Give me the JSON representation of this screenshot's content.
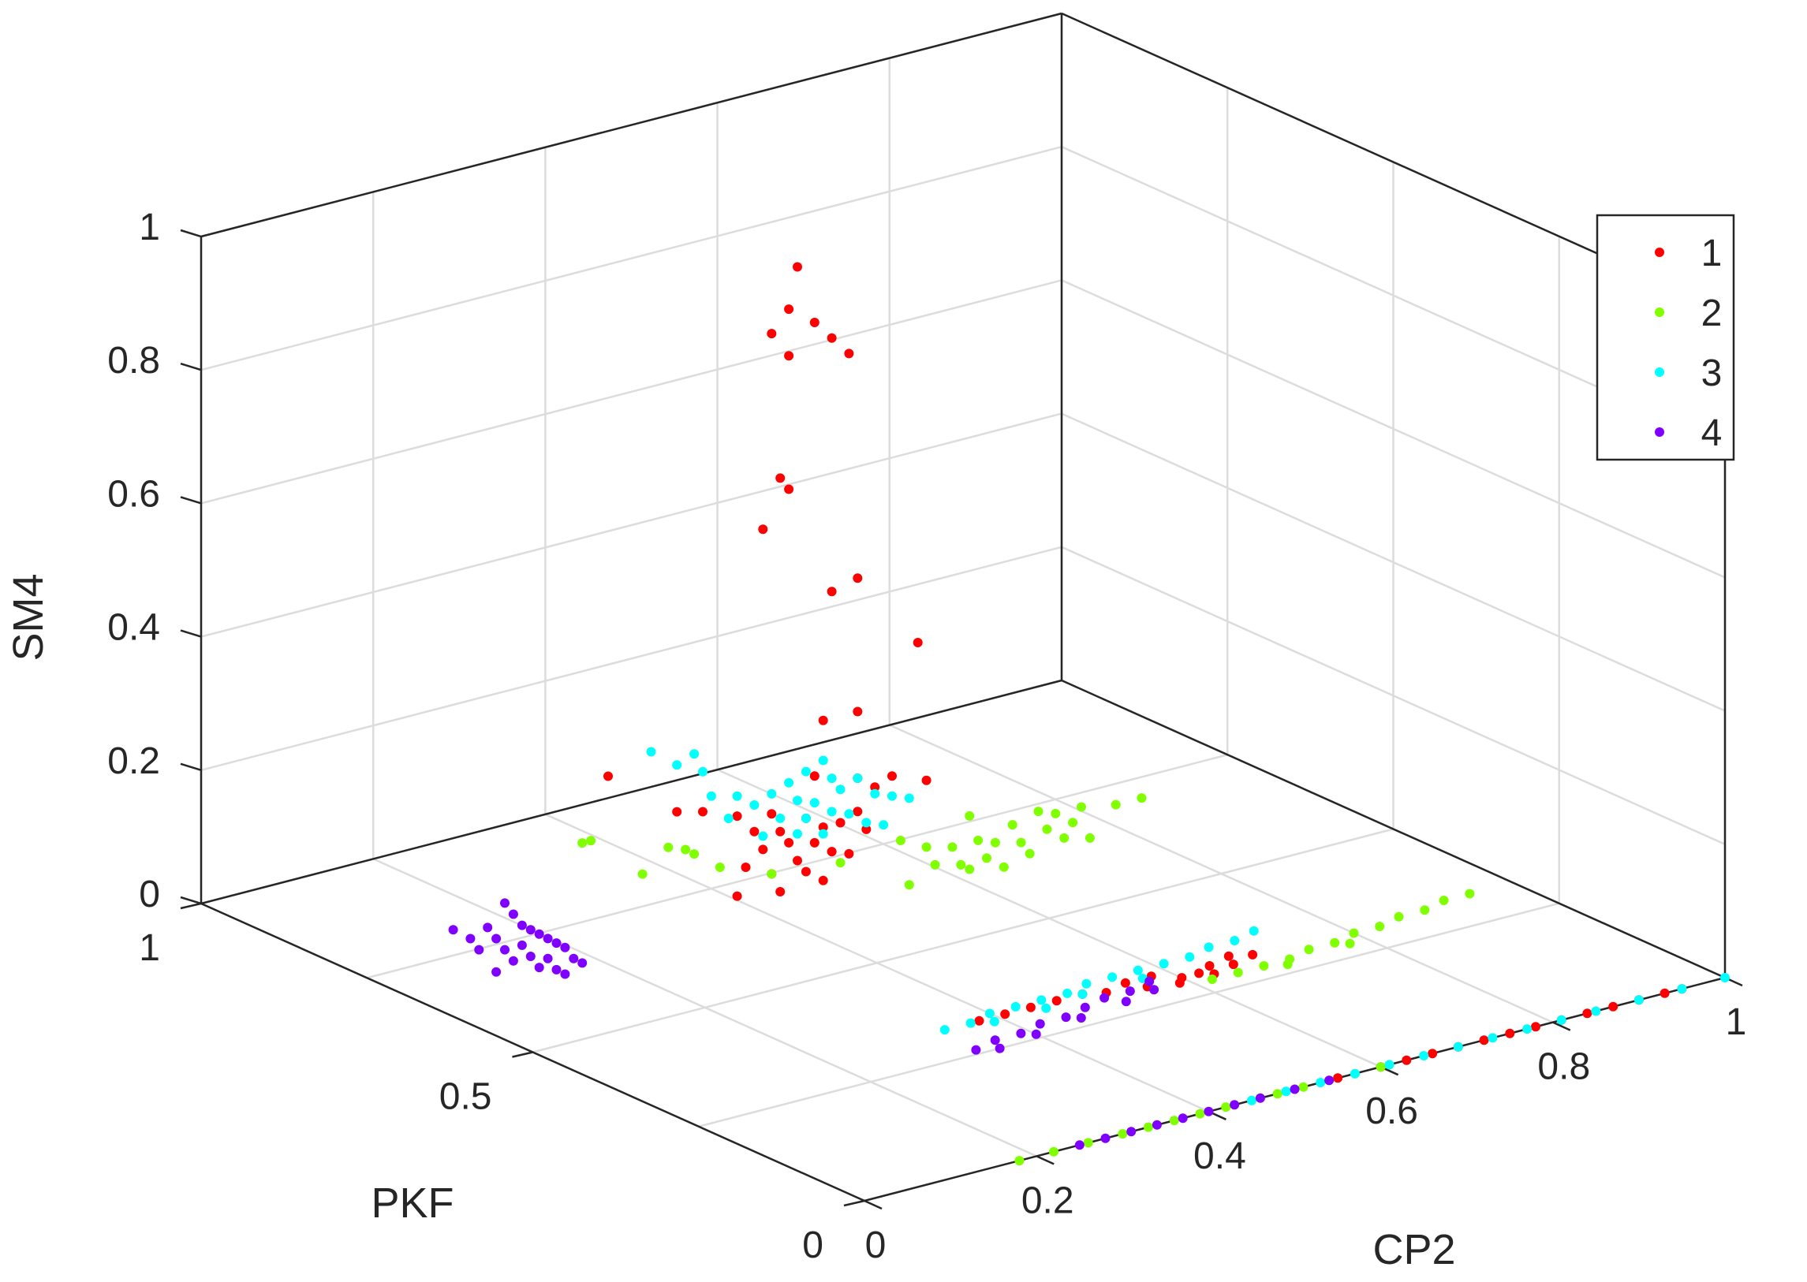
{
  "chart_data": {
    "type": "scatter",
    "projection": "3d",
    "title": "",
    "xlabel": "CP2",
    "ylabel": "PKF",
    "zlabel": "SM4",
    "xlim": [
      0,
      1
    ],
    "ylim": [
      0,
      1
    ],
    "zlim": [
      0,
      1
    ],
    "grid": true,
    "x_ticks": [
      0,
      0.2,
      0.4,
      0.6,
      0.8,
      1
    ],
    "y_ticks": [
      0,
      0.5,
      1
    ],
    "z_ticks": [
      0,
      0.2,
      0.4,
      0.6,
      0.8,
      1
    ],
    "x_tick_labels": [
      "0",
      "0.2",
      "0.4",
      "0.6",
      "0.8",
      "1"
    ],
    "y_tick_labels": [
      "0",
      "0.5",
      "1"
    ],
    "z_tick_labels": [
      "0",
      "0.2",
      "0.4",
      "0.6",
      "0.8",
      "1"
    ],
    "legend_position": "top-right",
    "colors": {
      "1": "#ff0000",
      "2": "#80ff00",
      "3": "#00ffff",
      "4": "#8000ff",
      "box": "#262626",
      "grid": "#dcdcdc"
    },
    "series": [
      {
        "name": "1",
        "color": "#ff0000",
        "points": [
          [
            0.4,
            0.62,
            0.99
          ],
          [
            0.39,
            0.62,
            0.93
          ],
          [
            0.37,
            0.62,
            0.9
          ],
          [
            0.42,
            0.62,
            0.9
          ],
          [
            0.44,
            0.62,
            0.87
          ],
          [
            0.39,
            0.62,
            0.86
          ],
          [
            0.46,
            0.62,
            0.84
          ],
          [
            0.38,
            0.62,
            0.68
          ],
          [
            0.39,
            0.62,
            0.66
          ],
          [
            0.36,
            0.62,
            0.61
          ],
          [
            0.47,
            0.62,
            0.5
          ],
          [
            0.44,
            0.62,
            0.49
          ],
          [
            0.54,
            0.62,
            0.38
          ],
          [
            0.43,
            0.62,
            0.3
          ],
          [
            0.47,
            0.62,
            0.3
          ],
          [
            0.18,
            0.62,
            0.3
          ],
          [
            0.26,
            0.62,
            0.22
          ],
          [
            0.29,
            0.62,
            0.21
          ],
          [
            0.33,
            0.62,
            0.19
          ],
          [
            0.37,
            0.62,
            0.18
          ],
          [
            0.35,
            0.62,
            0.16
          ],
          [
            0.38,
            0.62,
            0.15
          ],
          [
            0.41,
            0.62,
            0.16
          ],
          [
            0.43,
            0.62,
            0.14
          ],
          [
            0.36,
            0.62,
            0.13
          ],
          [
            0.39,
            0.62,
            0.13
          ],
          [
            0.42,
            0.62,
            0.12
          ],
          [
            0.45,
            0.62,
            0.14
          ],
          [
            0.47,
            0.62,
            0.15
          ],
          [
            0.34,
            0.62,
            0.11
          ],
          [
            0.4,
            0.62,
            0.1
          ],
          [
            0.44,
            0.62,
            0.1
          ],
          [
            0.48,
            0.62,
            0.12
          ],
          [
            0.37,
            0.62,
            0.09
          ],
          [
            0.41,
            0.62,
            0.08
          ],
          [
            0.46,
            0.62,
            0.09
          ],
          [
            0.49,
            0.62,
            0.18
          ],
          [
            0.51,
            0.62,
            0.19
          ],
          [
            0.55,
            0.62,
            0.17
          ],
          [
            0.38,
            0.62,
            0.06
          ],
          [
            0.43,
            0.62,
            0.06
          ],
          [
            0.33,
            0.62,
            0.07
          ],
          [
            0.42,
            0.62,
            0.22
          ],
          [
            0.47,
            0.62,
            0.2
          ],
          [
            0.38,
            0.32,
            0
          ],
          [
            0.41,
            0.32,
            0
          ],
          [
            0.44,
            0.32,
            0
          ],
          [
            0.47,
            0.32,
            0
          ],
          [
            0.5,
            0.32,
            0
          ],
          [
            0.52,
            0.31,
            0
          ],
          [
            0.55,
            0.32,
            0
          ],
          [
            0.58,
            0.32,
            0
          ],
          [
            0.6,
            0.3,
            0
          ],
          [
            0.62,
            0.3,
            0
          ],
          [
            0.64,
            0.31,
            0
          ],
          [
            0.66,
            0.3,
            0
          ],
          [
            0.56,
            0.3,
            0
          ],
          [
            0.59,
            0.29,
            0
          ],
          [
            0.63,
            0.29,
            0
          ],
          [
            0.67,
            0.32,
            0
          ],
          [
            0.69,
            0.31,
            0
          ],
          [
            0.55,
            0,
            0
          ],
          [
            0.6,
            0,
            0
          ],
          [
            0.63,
            0,
            0
          ],
          [
            0.66,
            0,
            0
          ],
          [
            0.69,
            0,
            0
          ],
          [
            0.72,
            0,
            0
          ],
          [
            0.75,
            0,
            0
          ],
          [
            0.78,
            0,
            0
          ],
          [
            0.81,
            0,
            0
          ],
          [
            0.84,
            0,
            0
          ],
          [
            0.87,
            0,
            0
          ],
          [
            0.9,
            0,
            0
          ],
          [
            0.93,
            0,
            0
          ],
          [
            0.95,
            0,
            0
          ]
        ]
      },
      {
        "name": "2",
        "color": "#80ff00",
        "points": [
          [
            0.16,
            0.62,
            0.21
          ],
          [
            0.15,
            0.62,
            0.21
          ],
          [
            0.25,
            0.62,
            0.17
          ],
          [
            0.27,
            0.62,
            0.16
          ],
          [
            0.28,
            0.62,
            0.15
          ],
          [
            0.22,
            0.62,
            0.14
          ],
          [
            0.31,
            0.62,
            0.12
          ],
          [
            0.37,
            0.62,
            0.09
          ],
          [
            0.45,
            0.62,
            0.08
          ],
          [
            0.52,
            0.62,
            0.09
          ],
          [
            0.6,
            0.62,
            0.1
          ],
          [
            0.55,
            0.62,
            0.07
          ],
          [
            0.58,
            0.62,
            0.06
          ],
          [
            0.61,
            0.62,
            0.06
          ],
          [
            0.63,
            0.62,
            0.05
          ],
          [
            0.65,
            0.62,
            0.07
          ],
          [
            0.68,
            0.62,
            0.08
          ],
          [
            0.7,
            0.62,
            0.07
          ],
          [
            0.73,
            0.62,
            0.07
          ],
          [
            0.56,
            0.62,
            0.04
          ],
          [
            0.59,
            0.62,
            0.03
          ],
          [
            0.62,
            0.62,
            0.03
          ],
          [
            0.66,
            0.62,
            0.04
          ],
          [
            0.69,
            0.62,
            0.05
          ],
          [
            0.72,
            0.62,
            0.05
          ],
          [
            0.77,
            0.62,
            0.06
          ],
          [
            0.8,
            0.62,
            0.06
          ],
          [
            0.6,
            0.62,
            0.02
          ],
          [
            0.64,
            0.62,
            0.01
          ],
          [
            0.53,
            0.62,
            0.02
          ],
          [
            0.67,
            0.62,
            0.02
          ],
          [
            0.71,
            0.62,
            0.03
          ],
          [
            0.74,
            0.62,
            0.02
          ],
          [
            0.62,
            0.28,
            0
          ],
          [
            0.65,
            0.28,
            0
          ],
          [
            0.68,
            0.28,
            0
          ],
          [
            0.71,
            0.28,
            0
          ],
          [
            0.74,
            0.29,
            0
          ],
          [
            0.77,
            0.29,
            0
          ],
          [
            0.8,
            0.3,
            0
          ],
          [
            0.83,
            0.3,
            0
          ],
          [
            0.86,
            0.31,
            0
          ],
          [
            0.89,
            0.31,
            0
          ],
          [
            0.92,
            0.32,
            0
          ],
          [
            0.95,
            0.32,
            0
          ],
          [
            0.7,
            0.27,
            0
          ],
          [
            0.78,
            0.28,
            0
          ],
          [
            0.18,
            0,
            0
          ],
          [
            0.22,
            0,
            0
          ],
          [
            0.26,
            0,
            0
          ],
          [
            0.3,
            0,
            0
          ],
          [
            0.33,
            0,
            0
          ],
          [
            0.36,
            0,
            0
          ],
          [
            0.39,
            0,
            0
          ],
          [
            0.42,
            0,
            0
          ],
          [
            0.45,
            0,
            0
          ],
          [
            0.48,
            0,
            0
          ],
          [
            0.51,
            0,
            0
          ],
          [
            0.54,
            0,
            0
          ],
          [
            0.57,
            0,
            0
          ],
          [
            0.6,
            0,
            0
          ]
        ]
      },
      {
        "name": "3",
        "color": "#00ffff",
        "points": [
          [
            0.23,
            0.62,
            0.32
          ],
          [
            0.26,
            0.62,
            0.29
          ],
          [
            0.28,
            0.62,
            0.3
          ],
          [
            0.29,
            0.62,
            0.27
          ],
          [
            0.3,
            0.62,
            0.23
          ],
          [
            0.33,
            0.62,
            0.22
          ],
          [
            0.32,
            0.62,
            0.19
          ],
          [
            0.35,
            0.62,
            0.2
          ],
          [
            0.37,
            0.62,
            0.21
          ],
          [
            0.39,
            0.62,
            0.22
          ],
          [
            0.41,
            0.62,
            0.23
          ],
          [
            0.43,
            0.62,
            0.24
          ],
          [
            0.44,
            0.62,
            0.21
          ],
          [
            0.4,
            0.62,
            0.19
          ],
          [
            0.42,
            0.62,
            0.18
          ],
          [
            0.45,
            0.62,
            0.19
          ],
          [
            0.47,
            0.62,
            0.2
          ],
          [
            0.38,
            0.62,
            0.17
          ],
          [
            0.41,
            0.62,
            0.16
          ],
          [
            0.44,
            0.62,
            0.16
          ],
          [
            0.46,
            0.62,
            0.15
          ],
          [
            0.49,
            0.62,
            0.17
          ],
          [
            0.51,
            0.62,
            0.16
          ],
          [
            0.36,
            0.62,
            0.15
          ],
          [
            0.4,
            0.62,
            0.14
          ],
          [
            0.43,
            0.62,
            0.13
          ],
          [
            0.48,
            0.62,
            0.13
          ],
          [
            0.53,
            0.62,
            0.15
          ],
          [
            0.5,
            0.62,
            0.12
          ],
          [
            0.34,
            0.32,
            0
          ],
          [
            0.37,
            0.32,
            0
          ],
          [
            0.4,
            0.33,
            0
          ],
          [
            0.43,
            0.33,
            0
          ],
          [
            0.46,
            0.33,
            0
          ],
          [
            0.49,
            0.33,
            0
          ],
          [
            0.52,
            0.34,
            0
          ],
          [
            0.55,
            0.34,
            0
          ],
          [
            0.58,
            0.34,
            0
          ],
          [
            0.61,
            0.34,
            0
          ],
          [
            0.64,
            0.34,
            0
          ],
          [
            0.67,
            0.35,
            0
          ],
          [
            0.7,
            0.35,
            0
          ],
          [
            0.73,
            0.36,
            0
          ],
          [
            0.39,
            0.31,
            0
          ],
          [
            0.45,
            0.31,
            0
          ],
          [
            0.5,
            0.32,
            0
          ],
          [
            0.57,
            0.32,
            0
          ],
          [
            0.45,
            0,
            0
          ],
          [
            0.49,
            0,
            0
          ],
          [
            0.53,
            0,
            0
          ],
          [
            0.57,
            0,
            0
          ],
          [
            0.61,
            0,
            0
          ],
          [
            0.65,
            0,
            0
          ],
          [
            0.69,
            0,
            0
          ],
          [
            0.73,
            0,
            0
          ],
          [
            0.77,
            0,
            0
          ],
          [
            0.81,
            0,
            0
          ],
          [
            0.85,
            0,
            0
          ],
          [
            0.9,
            0,
            0
          ],
          [
            0.95,
            0,
            0
          ],
          [
            1,
            0,
            0
          ]
        ]
      },
      {
        "name": "4",
        "color": "#8000ff",
        "points": [
          [
            0.0,
            0.62,
            0.13
          ],
          [
            0.02,
            0.62,
            0.11
          ],
          [
            0.04,
            0.62,
            0.12
          ],
          [
            0.06,
            0.62,
            0.15
          ],
          [
            0.07,
            0.62,
            0.13
          ],
          [
            0.03,
            0.62,
            0.09
          ],
          [
            0.05,
            0.62,
            0.1
          ],
          [
            0.08,
            0.62,
            0.11
          ],
          [
            0.09,
            0.62,
            0.1
          ],
          [
            0.1,
            0.62,
            0.09
          ],
          [
            0.06,
            0.62,
            0.08
          ],
          [
            0.08,
            0.62,
            0.08
          ],
          [
            0.11,
            0.62,
            0.08
          ],
          [
            0.12,
            0.62,
            0.07
          ],
          [
            0.07,
            0.62,
            0.06
          ],
          [
            0.09,
            0.62,
            0.06
          ],
          [
            0.11,
            0.62,
            0.05
          ],
          [
            0.13,
            0.62,
            0.06
          ],
          [
            0.1,
            0.62,
            0.04
          ],
          [
            0.12,
            0.62,
            0.03
          ],
          [
            0.14,
            0.62,
            0.04
          ],
          [
            0.13,
            0.62,
            0.02
          ],
          [
            0.05,
            0.62,
            0.05
          ],
          [
            0.15,
            0.62,
            0.03
          ],
          [
            0.33,
            0.26,
            0
          ],
          [
            0.36,
            0.27,
            0
          ],
          [
            0.39,
            0.27,
            0
          ],
          [
            0.42,
            0.28,
            0
          ],
          [
            0.45,
            0.28,
            0
          ],
          [
            0.48,
            0.29,
            0
          ],
          [
            0.51,
            0.3,
            0
          ],
          [
            0.54,
            0.3,
            0
          ],
          [
            0.57,
            0.31,
            0
          ],
          [
            0.35,
            0.25,
            0
          ],
          [
            0.4,
            0.26,
            0
          ],
          [
            0.46,
            0.27,
            0
          ],
          [
            0.52,
            0.28,
            0
          ],
          [
            0.56,
            0.29,
            0
          ],
          [
            0.25,
            0,
            0
          ],
          [
            0.28,
            0,
            0
          ],
          [
            0.31,
            0,
            0
          ],
          [
            0.34,
            0,
            0
          ],
          [
            0.37,
            0,
            0
          ],
          [
            0.4,
            0,
            0
          ],
          [
            0.43,
            0,
            0
          ],
          [
            0.46,
            0,
            0
          ],
          [
            0.5,
            0,
            0
          ],
          [
            0.54,
            0,
            0
          ]
        ]
      }
    ]
  }
}
